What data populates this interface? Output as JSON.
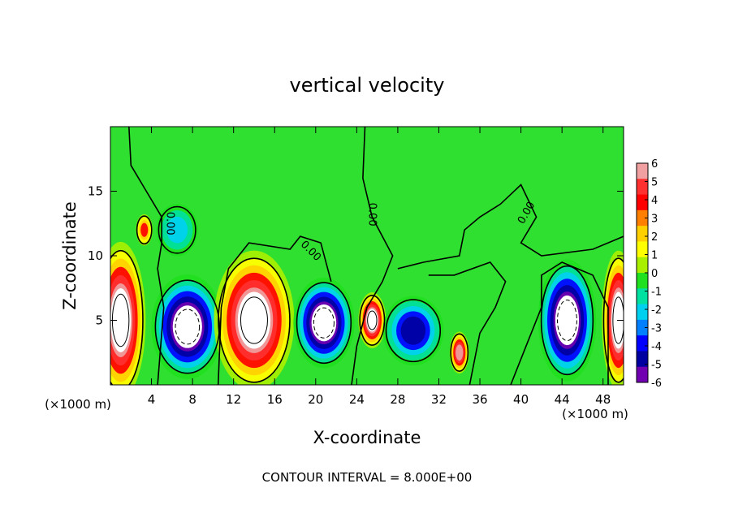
{
  "chart_data": {
    "type": "heatmap",
    "title": "vertical velocity",
    "xlabel": "X-coordinate",
    "ylabel": "Z-coordinate",
    "x_unit": "(×1000 m)",
    "y_unit": "(×1000 m)",
    "xlim": [
      0,
      50
    ],
    "ylim": [
      0,
      20
    ],
    "x_ticks": [
      4,
      8,
      12,
      16,
      20,
      24,
      28,
      32,
      36,
      40,
      44,
      48
    ],
    "y_ticks": [
      5,
      10,
      15
    ],
    "colorbar": {
      "ticks": [
        6,
        5,
        4,
        3,
        2,
        1,
        0,
        -1,
        -2,
        -3,
        -4,
        -5,
        -6
      ],
      "min": -6,
      "max": 6,
      "colors": [
        "#f0a0a0",
        "#ff3030",
        "#ff0000",
        "#ff8000",
        "#ffd000",
        "#ffff00",
        "#a8f000",
        "#20e020",
        "#00e0a0",
        "#00d0f0",
        "#0080ff",
        "#0000ff",
        "#0000a0",
        "#7000b0"
      ]
    },
    "contour_labels": [
      "0.00",
      "0.00",
      "0.00",
      "0.00"
    ],
    "footer": "CONTOUR INTERVAL = 8.000E+00",
    "features": [
      {
        "x": 1.0,
        "z": 5.0,
        "w": 6,
        "rx": 1.8,
        "rz": 4.5
      },
      {
        "x": 7.5,
        "z": 4.5,
        "w": -6,
        "rx": 2.6,
        "rz": 3.0
      },
      {
        "x": 14.0,
        "z": 5.0,
        "w": 6,
        "rx": 2.9,
        "rz": 4.0
      },
      {
        "x": 20.8,
        "z": 4.8,
        "w": -6,
        "rx": 2.2,
        "rz": 2.6
      },
      {
        "x": 25.5,
        "z": 5.0,
        "w": 6,
        "rx": 1.0,
        "rz": 1.6
      },
      {
        "x": 29.5,
        "z": 4.2,
        "w": -4,
        "rx": 2.2,
        "rz": 2.0
      },
      {
        "x": 34.0,
        "z": 2.5,
        "w": 5,
        "rx": 0.7,
        "rz": 1.2
      },
      {
        "x": 44.5,
        "z": 5.0,
        "w": -6,
        "rx": 2.1,
        "rz": 3.5
      },
      {
        "x": 49.5,
        "z": 5.0,
        "w": 6,
        "rx": 1.2,
        "rz": 4.0
      },
      {
        "x": 3.3,
        "z": 12.0,
        "w": 3,
        "rx": 0.6,
        "rz": 0.9
      },
      {
        "x": 6.5,
        "z": 12.0,
        "w": -2,
        "rx": 1.5,
        "rz": 1.5
      }
    ]
  }
}
